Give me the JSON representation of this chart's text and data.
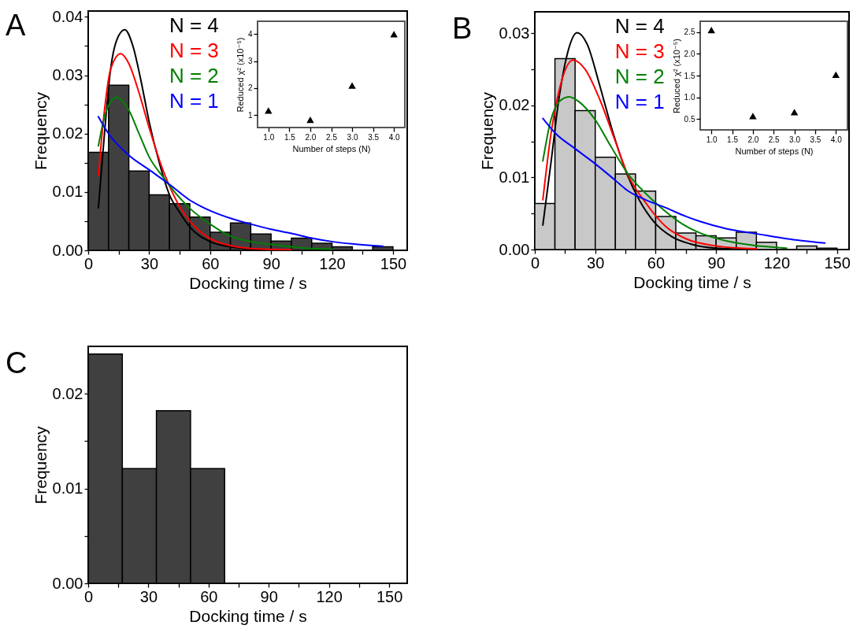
{
  "chart_data": [
    {
      "type": "histogram",
      "annotations": [
        "A"
      ],
      "xlabel": "Docking time / s",
      "ylabel": "Frequency",
      "color": "#404040",
      "legend": "top",
      "bins": [
        0,
        10,
        20,
        30,
        40,
        50,
        60,
        70,
        80,
        90,
        100,
        110,
        120,
        130,
        140,
        150
      ],
      "values": [
        0.0168,
        0.0283,
        0.0136,
        0.0095,
        0.008,
        0.0057,
        0.0031,
        0.0047,
        0.0028,
        0.0016,
        0.0021,
        0.0012,
        0.0006,
        0,
        0.0006
      ],
      "xlim": [
        0,
        157
      ],
      "xticks": [
        0,
        {
          "value": 15,
          "label": null
        },
        30,
        {
          "value": 45,
          "label": null
        },
        60,
        {
          "value": 75,
          "label": null
        },
        90,
        {
          "value": 105,
          "label": null
        },
        120,
        {
          "value": 135,
          "label": null
        },
        150
      ],
      "ylim": [
        0,
        0.041
      ],
      "yticks": [
        {
          "value": 0,
          "label": "0.00"
        },
        {
          "value": 0.005,
          "label": null
        },
        0.01,
        {
          "value": 0.015,
          "label": null
        },
        0.02,
        {
          "value": 0.025,
          "label": null
        },
        0.03,
        {
          "value": 0.035,
          "label": null
        },
        0.04
      ],
      "series": [
        {
          "name": "N = 4",
          "type": "line",
          "color": "#000000",
          "x": [
            5,
            8,
            11,
            14,
            18,
            22,
            26,
            30,
            35,
            40,
            45,
            50,
            60,
            70,
            80,
            100
          ],
          "values": [
            0.0073,
            0.02,
            0.031,
            0.036,
            0.0378,
            0.035,
            0.029,
            0.022,
            0.015,
            0.0095,
            0.0065,
            0.004,
            0.0015,
            0.0006,
            0.0002,
            0
          ]
        },
        {
          "name": "N = 3",
          "type": "line",
          "color": "#ff0000",
          "x": [
            5,
            8,
            11,
            16,
            20,
            25,
            30,
            36,
            40,
            45,
            50,
            60,
            70,
            80,
            100
          ],
          "values": [
            0.0129,
            0.024,
            0.031,
            0.0337,
            0.032,
            0.027,
            0.021,
            0.0145,
            0.011,
            0.0075,
            0.005,
            0.002,
            0.0008,
            0.0003,
            0.0001
          ]
        },
        {
          "name": "N = 2",
          "type": "line",
          "color": "#008000",
          "x": [
            5,
            9,
            14,
            20,
            25,
            30,
            37,
            45,
            50,
            60,
            70,
            80,
            90,
            100,
            110,
            120
          ],
          "values": [
            0.0179,
            0.024,
            0.0262,
            0.024,
            0.02,
            0.016,
            0.0125,
            0.009,
            0.0072,
            0.0045,
            0.0024,
            0.0015,
            0.001,
            0.0006,
            0.0003,
            0.0002
          ]
        },
        {
          "name": "N = 1",
          "type": "line",
          "color": "#0000ff",
          "x": [
            5,
            10,
            20,
            30,
            40,
            50,
            60,
            70,
            80,
            90,
            100,
            110,
            120,
            130,
            145
          ],
          "values": [
            0.0229,
            0.02,
            0.0163,
            0.0138,
            0.0113,
            0.0086,
            0.0068,
            0.0055,
            0.0045,
            0.0036,
            0.0029,
            0.0021,
            0.0015,
            0.0011,
            0.0007
          ]
        }
      ]
    },
    {
      "type": "scatter",
      "xlabel": "Number of steps (N)",
      "ylabel": "Reduced χ² (x10⁻⁵)",
      "color": "#000000",
      "marker": "triangle",
      "x": [
        1,
        2,
        3,
        4
      ],
      "values": [
        1.17,
        0.83,
        2.1,
        4.0
      ],
      "xlim": [
        0.74,
        4.26
      ],
      "xticks": [
        {
          "value": 1,
          "label": "1.0"
        },
        1.5,
        {
          "value": 2,
          "label": "2.0"
        },
        2.5,
        {
          "value": 3,
          "label": "3.0"
        },
        3.5,
        {
          "value": 4,
          "label": "4.0"
        }
      ],
      "ylim": [
        0.54,
        4.48
      ],
      "yticks": [
        1,
        2,
        3,
        4
      ]
    },
    {
      "type": "histogram",
      "annotations": [
        "B"
      ],
      "xlabel": "Docking time / s",
      "ylabel": "Frequency",
      "color": "#c8c8c8",
      "legend": "top",
      "bins": [
        0,
        10,
        20,
        30,
        40,
        50,
        60,
        70,
        80,
        90,
        100,
        110,
        120,
        130,
        140,
        150
      ],
      "values": [
        0.0064,
        0.0265,
        0.0193,
        0.0128,
        0.0105,
        0.0081,
        0.0046,
        0.0023,
        0.0019,
        0.0016,
        0.0024,
        0.001,
        0,
        0.0005,
        0.0002
      ],
      "xlim": [
        0,
        156
      ],
      "xticks": [
        0,
        {
          "value": 15,
          "label": null
        },
        30,
        {
          "value": 45,
          "label": null
        },
        60,
        {
          "value": 75,
          "label": null
        },
        90,
        {
          "value": 105,
          "label": null
        },
        120,
        {
          "value": 135,
          "label": null
        },
        150
      ],
      "ylim": [
        0,
        0.033
      ],
      "yticks": [
        {
          "value": 0,
          "label": "0.00"
        },
        {
          "value": 0.005,
          "label": null
        },
        0.01,
        {
          "value": 0.015,
          "label": null
        },
        0.02,
        {
          "value": 0.025,
          "label": null
        },
        0.03
      ],
      "series": [
        {
          "name": "N = 4",
          "type": "line",
          "color": "#000000",
          "x": [
            4,
            8,
            12,
            16,
            21,
            26,
            32,
            38,
            46,
            52,
            59,
            68,
            77,
            90,
            110
          ],
          "values": [
            0.0034,
            0.012,
            0.021,
            0.027,
            0.0301,
            0.0285,
            0.023,
            0.017,
            0.0103,
            0.0068,
            0.0039,
            0.0018,
            0.0008,
            0.0002,
            0
          ]
        },
        {
          "name": "N = 3",
          "type": "line",
          "color": "#ff0000",
          "x": [
            4,
            8,
            12,
            19,
            25,
            32,
            40,
            46,
            55,
            65,
            75,
            90,
            110
          ],
          "values": [
            0.0069,
            0.016,
            0.022,
            0.0263,
            0.025,
            0.021,
            0.015,
            0.0105,
            0.0065,
            0.0032,
            0.0015,
            0.0005,
            0.0001
          ]
        },
        {
          "name": "N = 2",
          "type": "line",
          "color": "#008000",
          "x": [
            4,
            8,
            12,
            17,
            22,
            30,
            38,
            46,
            55,
            64,
            73,
            82,
            95,
            108,
            125
          ],
          "values": [
            0.0123,
            0.018,
            0.0205,
            0.0212,
            0.0205,
            0.018,
            0.0142,
            0.0106,
            0.0078,
            0.0055,
            0.0036,
            0.0023,
            0.0012,
            0.0006,
            0.0002
          ]
        },
        {
          "name": "N = 1",
          "type": "line",
          "color": "#0000ff",
          "x": [
            4,
            10,
            20,
            30,
            40,
            46,
            55,
            65,
            75,
            82,
            95,
            110,
            125,
            144
          ],
          "values": [
            0.0182,
            0.0162,
            0.014,
            0.0119,
            0.0096,
            0.0082,
            0.0069,
            0.0058,
            0.0046,
            0.0039,
            0.0029,
            0.0022,
            0.0015,
            0.0009
          ]
        }
      ]
    },
    {
      "type": "scatter",
      "xlabel": "Number of steps (N)",
      "ylabel": "Reduced χ² (x10⁻⁵)",
      "color": "#000000",
      "marker": "triangle",
      "x": [
        1,
        2,
        3,
        4
      ],
      "values": [
        2.55,
        0.57,
        0.66,
        1.52
      ],
      "xlim": [
        0.73,
        4.28
      ],
      "xticks": [
        {
          "value": 1,
          "label": "1.0"
        },
        1.5,
        {
          "value": 2,
          "label": "2.0"
        },
        2.5,
        {
          "value": 3,
          "label": "3.0"
        },
        3.5,
        {
          "value": 4,
          "label": "4.0"
        }
      ],
      "ylim": [
        0.25,
        2.75
      ],
      "yticks": [
        0.5,
        {
          "value": 1,
          "label": "1.0"
        },
        1.5,
        {
          "value": 2,
          "label": "2.0"
        },
        2.5
      ]
    },
    {
      "type": "histogram",
      "annotations": [
        "C"
      ],
      "xlabel": "Docking time / s",
      "ylabel": "Frequency",
      "color": "#404040",
      "bins": [
        0,
        17,
        34,
        51,
        68
      ],
      "values": [
        0.0242,
        0.0121,
        0.0182,
        0.0121
      ],
      "xlim": [
        0,
        159
      ],
      "xticks": [
        0,
        {
          "value": 15,
          "label": null
        },
        30,
        {
          "value": 45,
          "label": null
        },
        60,
        {
          "value": 75,
          "label": null
        },
        90,
        {
          "value": 105,
          "label": null
        },
        120,
        {
          "value": 135,
          "label": null
        },
        150
      ],
      "ylim": [
        0,
        0.025
      ],
      "yticks": [
        {
          "value": 0,
          "label": "0.00"
        },
        {
          "value": 0.005,
          "label": null
        },
        0.01,
        {
          "value": 0.015,
          "label": null
        },
        0.02
      ]
    }
  ]
}
